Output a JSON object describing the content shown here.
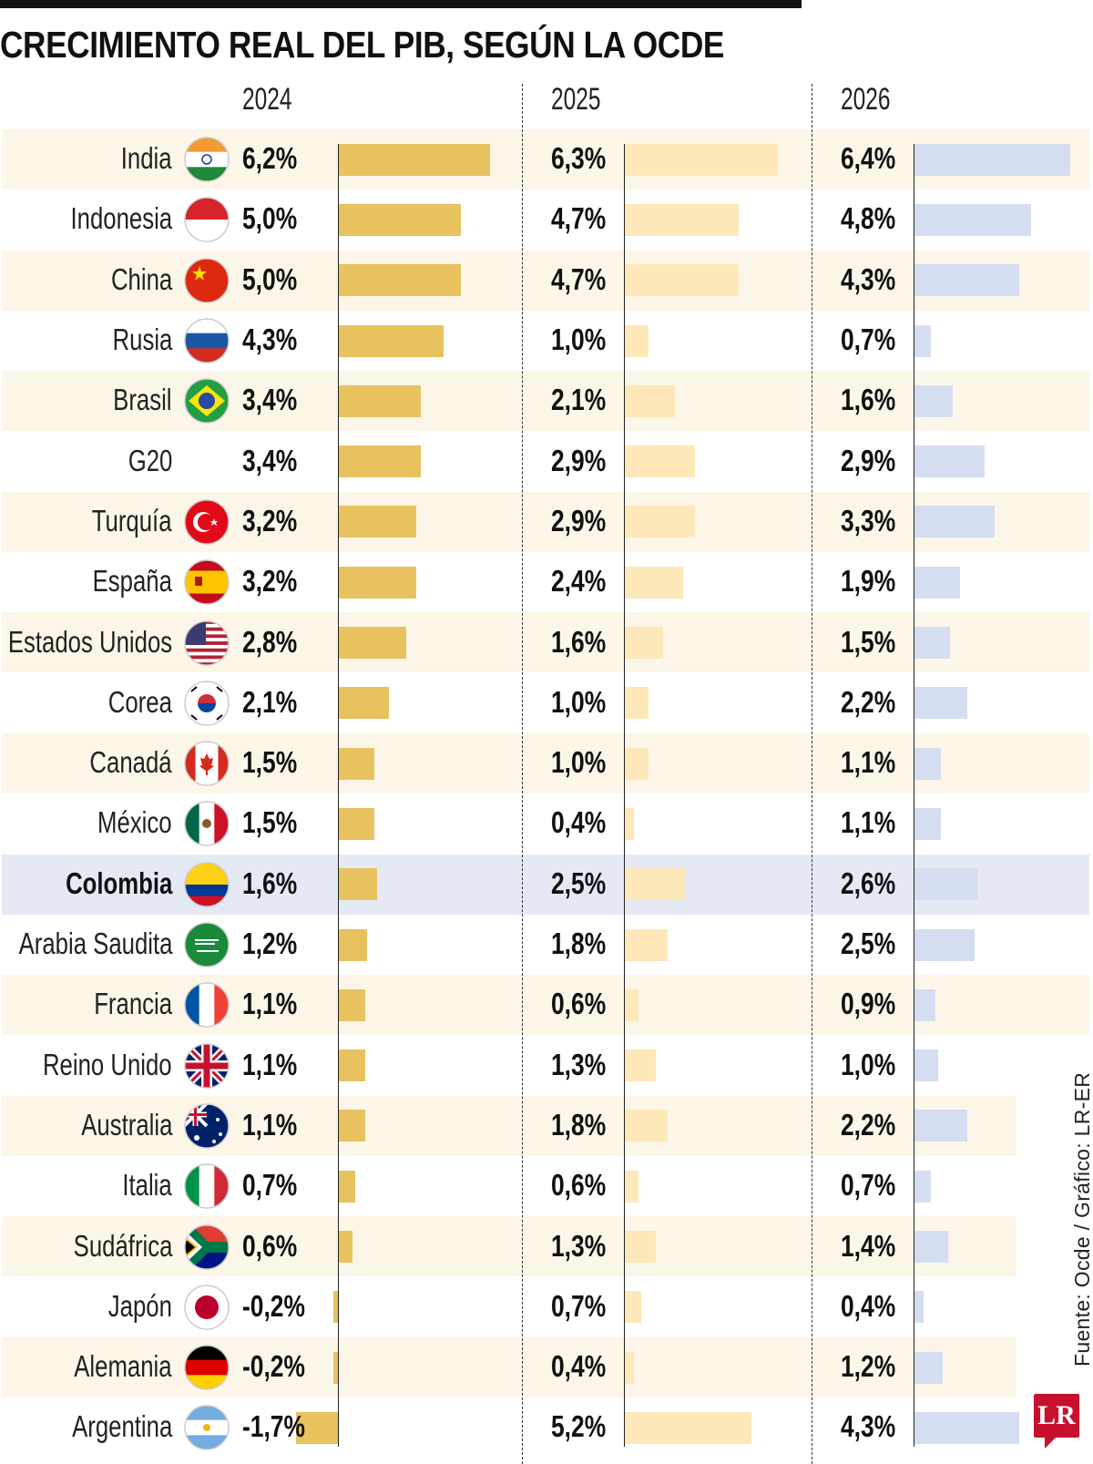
{
  "title": "CRECIMIENTO REAL DEL PIB, SEGÚN LA OCDE",
  "source": "Fuente: Ocde / Gráfico: LR-ER",
  "logo": "LR",
  "colors": {
    "bar_2024": "#e8c25f",
    "bar_2025": "#fde8b9",
    "bar_2026": "#d5ddf0",
    "stripe": "#fcf6e8",
    "highlight": "#e5e9f4"
  },
  "chart_data": {
    "type": "bar",
    "title": "CRECIMIENTO REAL DEL PIB, SEGÚN LA OCDE",
    "unit": "%",
    "years": [
      "2024",
      "2025",
      "2026"
    ],
    "highlight": "Colombia",
    "rows": [
      {
        "country": "India",
        "flag": "india-flag-icon",
        "v": [
          6.2,
          6.3,
          6.4
        ],
        "labels": [
          "6,2%",
          "6,3%",
          "6,4%"
        ]
      },
      {
        "country": "Indonesia",
        "flag": "indonesia-flag-icon",
        "v": [
          5.0,
          4.7,
          4.8
        ],
        "labels": [
          "5,0%",
          "4,7%",
          "4,8%"
        ]
      },
      {
        "country": "China",
        "flag": "china-flag-icon",
        "v": [
          5.0,
          4.7,
          4.3
        ],
        "labels": [
          "5,0%",
          "4,7%",
          "4,3%"
        ]
      },
      {
        "country": "Rusia",
        "flag": "russia-flag-icon",
        "v": [
          4.3,
          1.0,
          0.7
        ],
        "labels": [
          "4,3%",
          "1,0%",
          "0,7%"
        ]
      },
      {
        "country": "Brasil",
        "flag": "brazil-flag-icon",
        "v": [
          3.4,
          2.1,
          1.6
        ],
        "labels": [
          "3,4%",
          "2,1%",
          "1,6%"
        ]
      },
      {
        "country": "G20",
        "flag": "",
        "v": [
          3.4,
          2.9,
          2.9
        ],
        "labels": [
          "3,4%",
          "2,9%",
          "2,9%"
        ]
      },
      {
        "country": "Turquía",
        "flag": "turkey-flag-icon",
        "v": [
          3.2,
          2.9,
          3.3
        ],
        "labels": [
          "3,2%",
          "2,9%",
          "3,3%"
        ]
      },
      {
        "country": "España",
        "flag": "spain-flag-icon",
        "v": [
          3.2,
          2.4,
          1.9
        ],
        "labels": [
          "3,2%",
          "2,4%",
          "1,9%"
        ]
      },
      {
        "country": "Estados Unidos",
        "flag": "usa-flag-icon",
        "v": [
          2.8,
          1.6,
          1.5
        ],
        "labels": [
          "2,8%",
          "1,6%",
          "1,5%"
        ]
      },
      {
        "country": "Corea",
        "flag": "korea-flag-icon",
        "v": [
          2.1,
          1.0,
          2.2
        ],
        "labels": [
          "2,1%",
          "1,0%",
          "2,2%"
        ]
      },
      {
        "country": "Canadá",
        "flag": "canada-flag-icon",
        "v": [
          1.5,
          1.0,
          1.1
        ],
        "labels": [
          "1,5%",
          "1,0%",
          "1,1%"
        ]
      },
      {
        "country": "México",
        "flag": "mexico-flag-icon",
        "v": [
          1.5,
          0.4,
          1.1
        ],
        "labels": [
          "1,5%",
          "0,4%",
          "1,1%"
        ]
      },
      {
        "country": "Colombia",
        "flag": "colombia-flag-icon",
        "v": [
          1.6,
          2.5,
          2.6
        ],
        "labels": [
          "1,6%",
          "2,5%",
          "2,6%"
        ]
      },
      {
        "country": "Arabia Saudita",
        "flag": "saudi-arabia-flag-icon",
        "v": [
          1.2,
          1.8,
          2.5
        ],
        "labels": [
          "1,2%",
          "1,8%",
          "2,5%"
        ]
      },
      {
        "country": "Francia",
        "flag": "france-flag-icon",
        "v": [
          1.1,
          0.6,
          0.9
        ],
        "labels": [
          "1,1%",
          "0,6%",
          "0,9%"
        ]
      },
      {
        "country": "Reino Unido",
        "flag": "uk-flag-icon",
        "v": [
          1.1,
          1.3,
          1.0
        ],
        "labels": [
          "1,1%",
          "1,3%",
          "1,0%"
        ]
      },
      {
        "country": "Australia",
        "flag": "australia-flag-icon",
        "v": [
          1.1,
          1.8,
          2.2
        ],
        "labels": [
          "1,1%",
          "1,8%",
          "2,2%"
        ]
      },
      {
        "country": "Italia",
        "flag": "italy-flag-icon",
        "v": [
          0.7,
          0.6,
          0.7
        ],
        "labels": [
          "0,7%",
          "0,6%",
          "0,7%"
        ]
      },
      {
        "country": "Sudáfrica",
        "flag": "south-africa-flag-icon",
        "v": [
          0.6,
          1.3,
          1.4
        ],
        "labels": [
          "0,6%",
          "1,3%",
          "1,4%"
        ]
      },
      {
        "country": "Japón",
        "flag": "japan-flag-icon",
        "v": [
          -0.2,
          0.7,
          0.4
        ],
        "labels": [
          "-0,2%",
          "0,7%",
          "0,4%"
        ]
      },
      {
        "country": "Alemania",
        "flag": "germany-flag-icon",
        "v": [
          -0.2,
          0.4,
          1.2
        ],
        "labels": [
          "-0,2%",
          "0,4%",
          "1,2%"
        ]
      },
      {
        "country": "Argentina",
        "flag": "argentina-flag-icon",
        "v": [
          -1.7,
          5.2,
          4.3
        ],
        "labels": [
          "-1,7%",
          "5,2%",
          "4,3%"
        ]
      }
    ]
  }
}
